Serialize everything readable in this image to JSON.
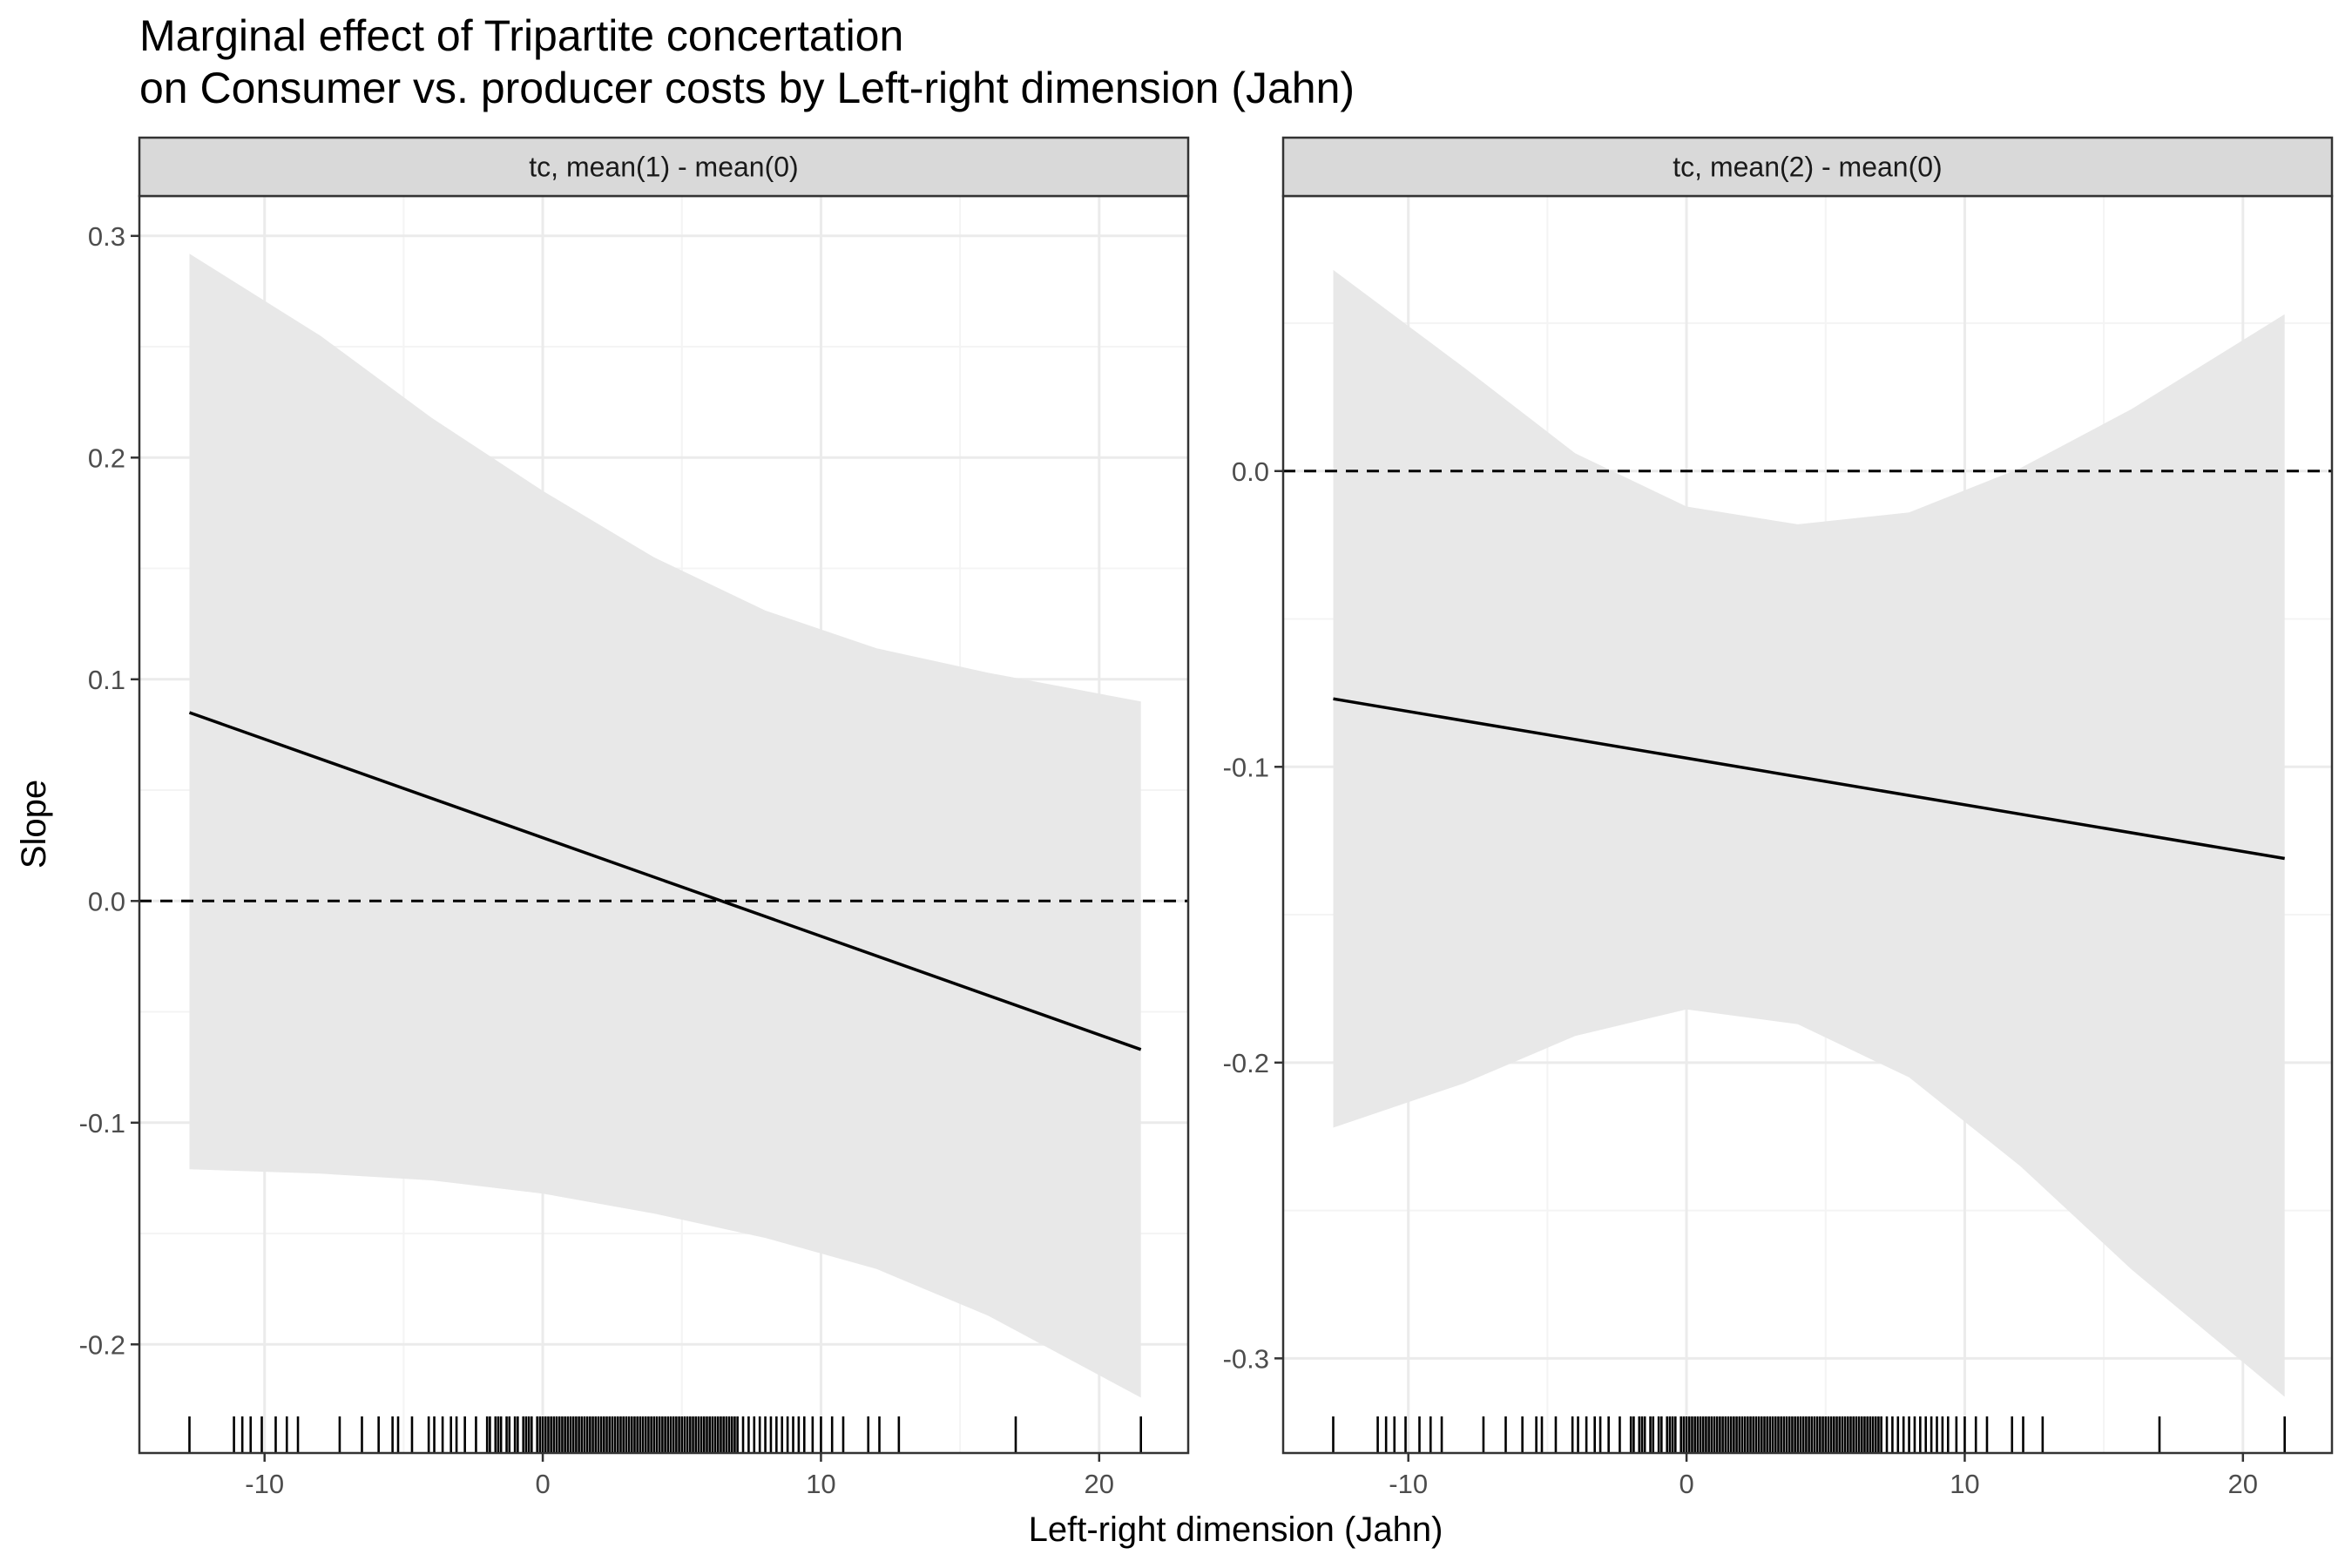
{
  "chart": {
    "title_line1": "Marginal effect of Tripartite concertation",
    "title_line2": "on Consumer vs. producer costs by Left-right dimension (Jahn)",
    "xlabel": "Left-right dimension (Jahn)",
    "ylabel": "Slope"
  },
  "colors": {
    "panel_border": "#333333",
    "strip_fill": "#d9d9d9",
    "ribbon": "#e8e8e8",
    "grid_major": "#ebebeb",
    "grid_minor": "#f4f4f4",
    "line": "#000000",
    "text": "#4d4d4d"
  },
  "chart_data": [
    {
      "type": "line",
      "facet_label": "tc, mean(1) - mean(0)",
      "xlim": [
        -14.5,
        23.2
      ],
      "ylim": [
        -0.249,
        0.318
      ],
      "x_ticks": [
        -10,
        0,
        10,
        20
      ],
      "x_tick_labels": [
        "-10",
        "0",
        "10",
        "20"
      ],
      "y_ticks": [
        -0.2,
        -0.1,
        0.0,
        0.1,
        0.2,
        0.3
      ],
      "y_tick_labels": [
        "-0.2",
        "-0.1",
        "0.0",
        "0.1",
        "0.2",
        "0.3"
      ],
      "reference_line_y": 0,
      "grid": true,
      "series": [
        {
          "x": [
            -12.7,
            21.5
          ],
          "values": [
            0.085,
            -0.067
          ]
        }
      ],
      "ribbon": {
        "x": [
          -12.7,
          -8,
          -4,
          0,
          4,
          8,
          12,
          16,
          21.5
        ],
        "upper": [
          0.292,
          0.255,
          0.218,
          0.185,
          0.155,
          0.131,
          0.114,
          0.103,
          0.09
        ],
        "lower": [
          -0.121,
          -0.123,
          -0.126,
          -0.132,
          -0.141,
          -0.152,
          -0.166,
          -0.187,
          -0.224
        ]
      },
      "rug": [
        -12.7,
        -11.1,
        -10.8,
        -10.5,
        -10.1,
        -9.6,
        -9.2,
        -8.8,
        -7.3,
        -6.5,
        -5.9,
        -5.4,
        -5.2,
        -4.7,
        -4.1,
        -3.9,
        -3.6,
        -3.3,
        -3.1,
        -2.8,
        -2.4,
        -2.0,
        -1.9,
        -1.7,
        -1.6,
        -1.5,
        -1.3,
        -1.2,
        -1.0,
        -0.9,
        -0.7,
        -0.6,
        -0.5,
        -0.4,
        -0.2,
        -0.1,
        0.0,
        0.1,
        0.2,
        0.3,
        0.4,
        0.5,
        0.6,
        0.7,
        0.8,
        0.9,
        1.0,
        1.1,
        1.2,
        1.3,
        1.4,
        1.5,
        1.6,
        1.7,
        1.8,
        1.9,
        2.0,
        2.1,
        2.2,
        2.3,
        2.4,
        2.5,
        2.6,
        2.7,
        2.8,
        2.9,
        3.0,
        3.1,
        3.2,
        3.3,
        3.4,
        3.5,
        3.6,
        3.7,
        3.8,
        3.9,
        4.0,
        4.1,
        4.2,
        4.3,
        4.4,
        4.5,
        4.6,
        4.7,
        4.8,
        4.9,
        5.0,
        5.1,
        5.2,
        5.3,
        5.4,
        5.5,
        5.6,
        5.7,
        5.8,
        5.9,
        6.0,
        6.1,
        6.2,
        6.3,
        6.4,
        6.5,
        6.6,
        6.7,
        6.8,
        6.9,
        7.0,
        7.2,
        7.4,
        7.6,
        7.8,
        8.0,
        8.2,
        8.4,
        8.6,
        8.8,
        9.0,
        9.2,
        9.4,
        9.7,
        10.0,
        10.4,
        10.8,
        11.7,
        12.1,
        12.8,
        17.0,
        21.5
      ]
    },
    {
      "type": "line",
      "facet_label": "tc, mean(2) - mean(0)",
      "xlim": [
        -14.5,
        23.2
      ],
      "ylim": [
        -0.332,
        0.093
      ],
      "x_ticks": [
        -10,
        0,
        10,
        20
      ],
      "x_tick_labels": [
        "-10",
        "0",
        "10",
        "20"
      ],
      "y_ticks": [
        -0.3,
        -0.2,
        -0.1,
        0.0
      ],
      "y_tick_labels": [
        "-0.3",
        "-0.2",
        "-0.1",
        "0.0"
      ],
      "reference_line_y": 0,
      "grid": true,
      "series": [
        {
          "x": [
            -12.7,
            21.5
          ],
          "values": [
            -0.077,
            -0.131
          ]
        }
      ],
      "ribbon": {
        "x": [
          -12.7,
          -8,
          -4,
          0,
          4,
          8,
          12,
          16,
          21.5
        ],
        "upper": [
          0.068,
          0.035,
          0.006,
          -0.012,
          -0.018,
          -0.014,
          0.001,
          0.021,
          0.053
        ],
        "lower": [
          -0.222,
          -0.207,
          -0.191,
          -0.182,
          -0.187,
          -0.205,
          -0.235,
          -0.27,
          -0.313
        ]
      },
      "rug": [
        -12.7,
        -11.1,
        -10.8,
        -10.5,
        -10.1,
        -9.6,
        -9.2,
        -8.8,
        -7.3,
        -6.5,
        -5.9,
        -5.4,
        -5.2,
        -4.7,
        -4.1,
        -3.9,
        -3.6,
        -3.3,
        -3.1,
        -2.8,
        -2.4,
        -2.0,
        -1.9,
        -1.7,
        -1.6,
        -1.5,
        -1.3,
        -1.2,
        -1.0,
        -0.9,
        -0.7,
        -0.6,
        -0.5,
        -0.4,
        -0.2,
        -0.1,
        0.0,
        0.1,
        0.2,
        0.3,
        0.4,
        0.5,
        0.6,
        0.7,
        0.8,
        0.9,
        1.0,
        1.1,
        1.2,
        1.3,
        1.4,
        1.5,
        1.6,
        1.7,
        1.8,
        1.9,
        2.0,
        2.1,
        2.2,
        2.3,
        2.4,
        2.5,
        2.6,
        2.7,
        2.8,
        2.9,
        3.0,
        3.1,
        3.2,
        3.3,
        3.4,
        3.5,
        3.6,
        3.7,
        3.8,
        3.9,
        4.0,
        4.1,
        4.2,
        4.3,
        4.4,
        4.5,
        4.6,
        4.7,
        4.8,
        4.9,
        5.0,
        5.1,
        5.2,
        5.3,
        5.4,
        5.5,
        5.6,
        5.7,
        5.8,
        5.9,
        6.0,
        6.1,
        6.2,
        6.3,
        6.4,
        6.5,
        6.6,
        6.7,
        6.8,
        6.9,
        7.0,
        7.2,
        7.4,
        7.6,
        7.8,
        8.0,
        8.2,
        8.4,
        8.6,
        8.8,
        9.0,
        9.2,
        9.4,
        9.7,
        10.0,
        10.4,
        10.8,
        11.7,
        12.1,
        12.8,
        17.0,
        21.5
      ]
    }
  ]
}
